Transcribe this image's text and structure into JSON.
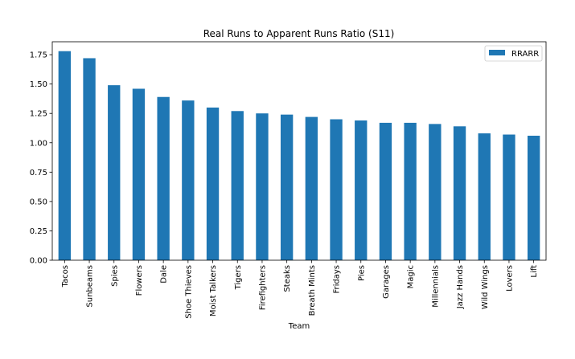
{
  "chart_data": {
    "type": "bar",
    "title": "Real Runs to Apparent Runs Ratio (S11)",
    "xlabel": "Team",
    "ylabel": "",
    "ylim": [
      0,
      1.86
    ],
    "yticks": [
      "0.00",
      "0.25",
      "0.50",
      "0.75",
      "1.00",
      "1.25",
      "1.50",
      "1.75"
    ],
    "categories": [
      "Tacos",
      "Sunbeams",
      "Spies",
      "Flowers",
      "Dale",
      "Shoe Thieves",
      "Moist Talkers",
      "Tigers",
      "Firefighters",
      "Steaks",
      "Breath Mints",
      "Fridays",
      "Pies",
      "Garages",
      "Magic",
      "Millennials",
      "Jazz Hands",
      "Wild Wings",
      "Lovers",
      "Lift"
    ],
    "series": [
      {
        "name": "RRARR",
        "color": "#1f77b4",
        "values": [
          1.78,
          1.72,
          1.49,
          1.46,
          1.39,
          1.36,
          1.3,
          1.27,
          1.25,
          1.24,
          1.22,
          1.2,
          1.19,
          1.17,
          1.17,
          1.16,
          1.14,
          1.08,
          1.07,
          1.06
        ]
      }
    ],
    "grid": false,
    "legend_position": "top-right"
  }
}
